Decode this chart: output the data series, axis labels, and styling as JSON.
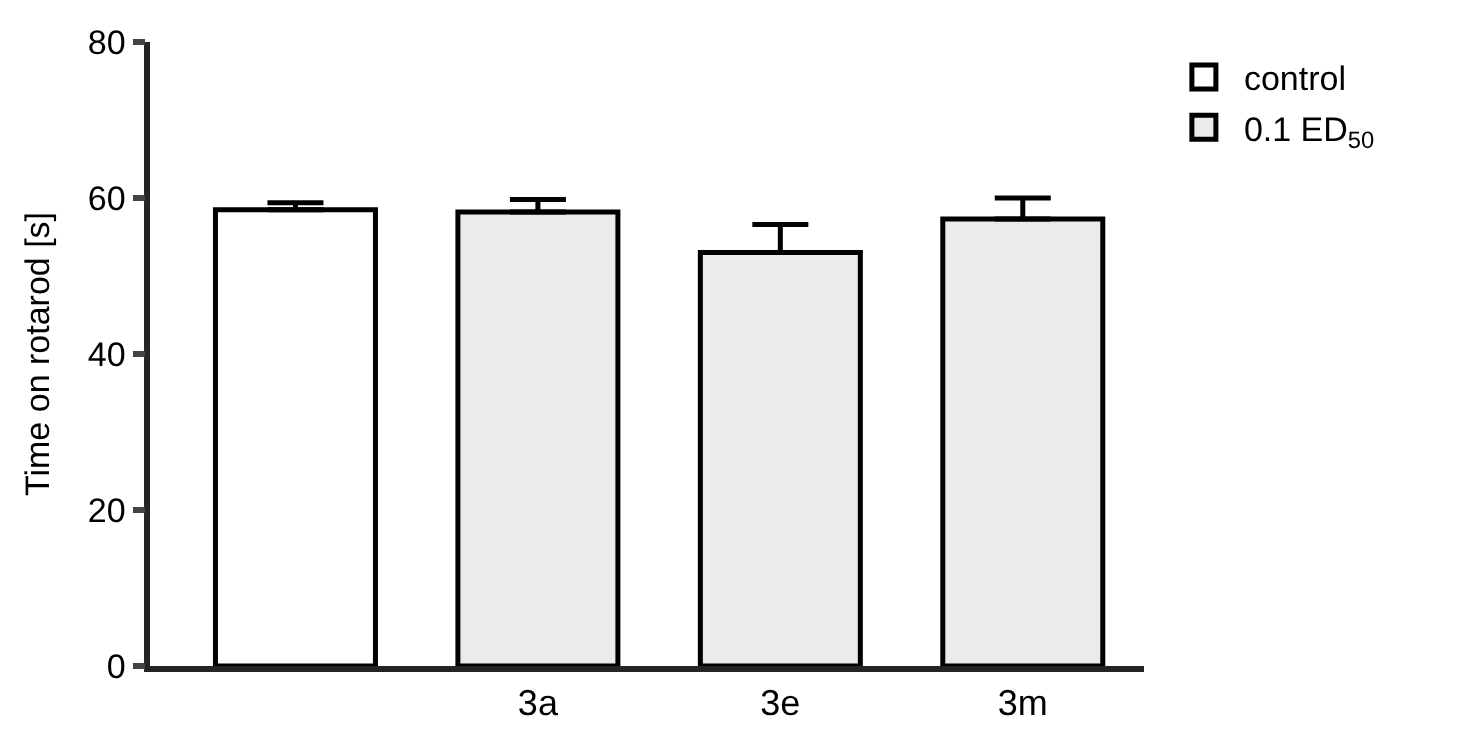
{
  "chart_data": {
    "type": "bar",
    "ylabel": "Time on rotarod [s]",
    "categories": [
      null,
      "3a",
      "3e",
      "3m"
    ],
    "series": [
      {
        "name": "control",
        "color": "#ffffff",
        "values": [
          58.5,
          null,
          null,
          null
        ],
        "errors": [
          0.9,
          null,
          null,
          null
        ]
      },
      {
        "name": "0.1 ED$_{50}$",
        "color": "#ebebeb",
        "values": [
          null,
          58.2,
          53.0,
          57.3
        ],
        "errors": [
          null,
          1.6,
          3.6,
          2.7
        ]
      }
    ],
    "ylim": [
      0,
      80
    ],
    "yticks": [
      0,
      20,
      40,
      60,
      80
    ],
    "grid": false,
    "legend": "top right"
  }
}
